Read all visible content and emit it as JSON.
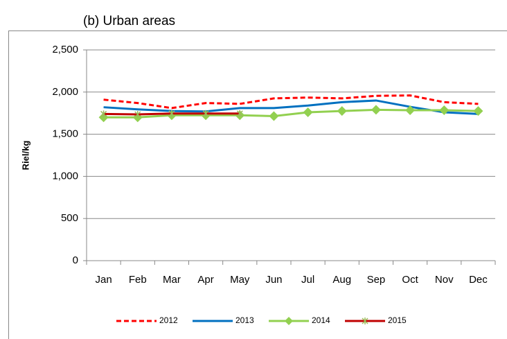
{
  "chart_data": {
    "type": "line",
    "title": "(b)  Urban areas",
    "y_label": "Riel/kg",
    "categories": [
      "Jan",
      "Feb",
      "Mar",
      "Apr",
      "May",
      "Jun",
      "Jul",
      "Aug",
      "Sep",
      "Oct",
      "Nov",
      "Dec"
    ],
    "series": [
      {
        "name": "2012",
        "color": "#ff0000",
        "dash": true,
        "marker": "none",
        "values": [
          1910,
          1870,
          1810,
          1870,
          1860,
          1925,
          1935,
          1925,
          1955,
          1960,
          1880,
          1860
        ]
      },
      {
        "name": "2013",
        "color": "#0070c0",
        "dash": false,
        "marker": "none",
        "values": [
          1820,
          1795,
          1775,
          1770,
          1810,
          1810,
          1840,
          1880,
          1900,
          1825,
          1760,
          1740
        ]
      },
      {
        "name": "2014",
        "color": "#92d050",
        "dash": false,
        "marker": "diamond",
        "values": [
          1700,
          1700,
          1725,
          1725,
          1725,
          1715,
          1760,
          1775,
          1790,
          1785,
          1785,
          1775
        ]
      },
      {
        "name": "2015",
        "color": "#c00000",
        "dash": false,
        "marker": "star",
        "values": [
          1740,
          1735,
          1745,
          1745,
          1745,
          null,
          null,
          null,
          null,
          null,
          null,
          null
        ]
      }
    ],
    "ylim": [
      0,
      2500
    ],
    "yticks": [
      0,
      500,
      {
        "value": 1000,
        "label": "1,000"
      },
      {
        "value": 1500,
        "label": "1,500"
      },
      {
        "value": 2000,
        "label": "2,000"
      },
      {
        "value": 2500,
        "label": "2,500"
      }
    ],
    "grid": true,
    "legend": "bottom"
  }
}
